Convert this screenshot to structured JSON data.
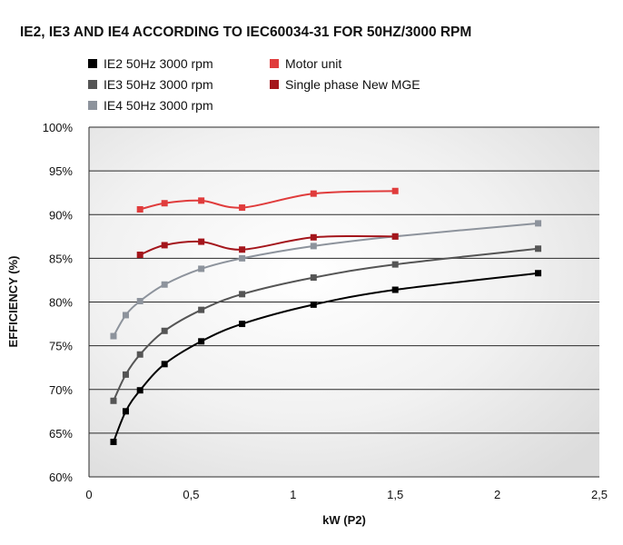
{
  "chart_data": {
    "type": "line",
    "title": "IE2, IE3 AND IE4 ACCORDING TO IEC60034-31 FOR 50HZ/3000 RPM",
    "xlabel": "kW (P2)",
    "ylabel": "EFFICIENCY (%)",
    "xlim": [
      0,
      2.5
    ],
    "ylim": [
      60,
      100
    ],
    "x_ticks": [
      "0",
      "0,5",
      "1",
      "1,5",
      "2",
      "2,5"
    ],
    "y_ticks": [
      "60%",
      "65%",
      "70%",
      "75%",
      "80%",
      "85%",
      "90%",
      "95%",
      "100%"
    ],
    "grid": "horizontal",
    "legend_position": "top-left",
    "series": [
      {
        "name": "IE2 50Hz 3000 rpm",
        "color": "#000000",
        "x": [
          0.12,
          0.18,
          0.25,
          0.37,
          0.55,
          0.75,
          1.1,
          1.5,
          2.2
        ],
        "y": [
          64.0,
          67.5,
          69.9,
          72.9,
          75.5,
          77.5,
          79.7,
          81.4,
          83.3
        ]
      },
      {
        "name": "IE3 50Hz 3000 rpm",
        "color": "#555555",
        "x": [
          0.12,
          0.18,
          0.25,
          0.37,
          0.55,
          0.75,
          1.1,
          1.5,
          2.2
        ],
        "y": [
          68.7,
          71.7,
          74.0,
          76.7,
          79.1,
          80.9,
          82.8,
          84.3,
          86.1
        ]
      },
      {
        "name": "IE4 50Hz 3000 rpm",
        "color": "#8d939c",
        "x": [
          0.12,
          0.18,
          0.25,
          0.37,
          0.55,
          0.75,
          1.1,
          1.5,
          2.2
        ],
        "y": [
          76.1,
          78.5,
          80.1,
          82.0,
          83.8,
          85.0,
          86.4,
          87.5,
          89.0
        ]
      },
      {
        "name": "Motor unit",
        "color": "#e03c3c",
        "x": [
          0.25,
          0.37,
          0.55,
          0.75,
          1.1,
          1.5
        ],
        "y": [
          90.6,
          91.3,
          91.6,
          90.8,
          92.4,
          92.7
        ]
      },
      {
        "name": "Single phase New MGE",
        "color": "#a4161c",
        "x": [
          0.25,
          0.37,
          0.55,
          0.75,
          1.1,
          1.5
        ],
        "y": [
          85.4,
          86.5,
          86.9,
          86.0,
          87.4,
          87.5
        ]
      }
    ]
  }
}
